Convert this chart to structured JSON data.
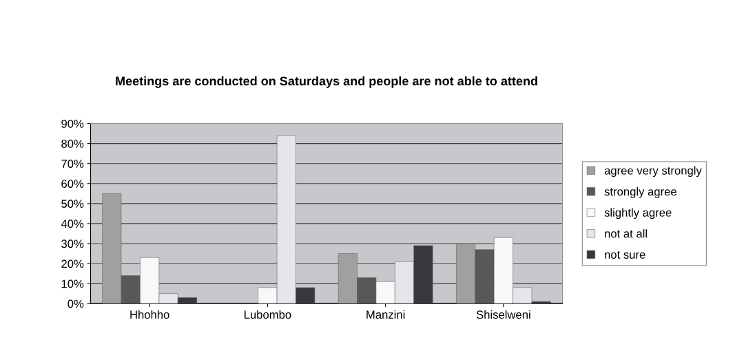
{
  "chart_data": {
    "type": "bar",
    "title": "Meetings are conducted on Saturdays and people are not able to attend",
    "categories": [
      "Hhohho",
      "Lubombo",
      "Manzini",
      "Shiselweni"
    ],
    "series": [
      {
        "name": "agree very strongly",
        "color": "#a0a0a0",
        "values": [
          55,
          null,
          25,
          30
        ]
      },
      {
        "name": "strongly agree",
        "color": "#585858",
        "values": [
          14,
          null,
          13,
          27
        ]
      },
      {
        "name": "slightly agree",
        "color": "#f8f8f8",
        "values": [
          23,
          8,
          11,
          33
        ]
      },
      {
        "name": "not at all",
        "color": "#e6e6ea",
        "values": [
          5,
          84,
          21,
          8
        ]
      },
      {
        "name": "not sure",
        "color": "#38383c",
        "values": [
          3,
          8,
          29,
          1
        ]
      }
    ],
    "ylim": [
      0,
      90
    ],
    "yticks": [
      {
        "value": 0,
        "label": "0%"
      },
      {
        "value": 10,
        "label": "10%"
      },
      {
        "value": 20,
        "label": "20%"
      },
      {
        "value": 30,
        "label": "30%"
      },
      {
        "value": 40,
        "label": "40%"
      },
      {
        "value": 50,
        "label": "50%"
      },
      {
        "value": 60,
        "label": "60%"
      },
      {
        "value": 70,
        "label": "70%"
      },
      {
        "value": 80,
        "label": "80%"
      },
      {
        "value": 90,
        "label": "90%"
      }
    ],
    "grid": "y",
    "legend": "right"
  }
}
